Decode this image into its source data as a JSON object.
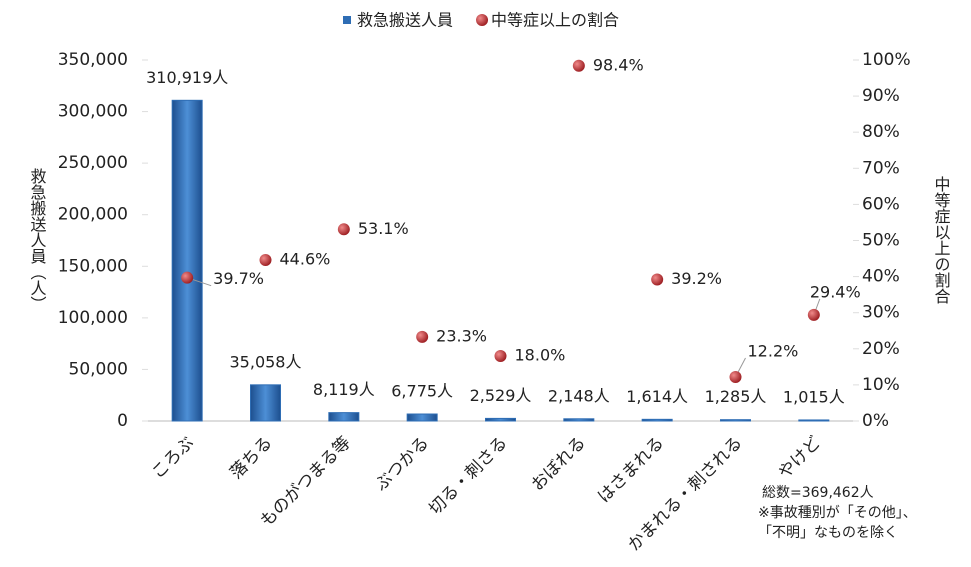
{
  "chart_data": {
    "type": "bar",
    "categories": [
      "ころぶ",
      "落ちる",
      "ものがつまる等",
      "ぶつかる",
      "切る・刺さる",
      "おぼれる",
      "はさまれる",
      "かまれる・刺される",
      "やけど"
    ],
    "series": [
      {
        "name": "救急搬送人員",
        "type": "bar",
        "axis": "y",
        "color": "#2e6db4",
        "values": [
          310919,
          35058,
          8119,
          6775,
          2529,
          2148,
          1614,
          1285,
          1015
        ],
        "value_labels": [
          "310,919人",
          "35,058人",
          "8,119人",
          "6,775人",
          "2,529人",
          "2,148人",
          "1,614人",
          "1,285人",
          "1,015人"
        ]
      },
      {
        "name": "中等症以上の割合",
        "type": "scatter",
        "axis": "y2",
        "color": "#c0282c",
        "values": [
          39.7,
          44.6,
          53.1,
          23.3,
          18.0,
          98.4,
          39.2,
          12.2,
          29.4
        ],
        "value_labels": [
          "39.7%",
          "44.6%",
          "53.1%",
          "23.3%",
          "18.0%",
          "98.4%",
          "39.2%",
          "12.2%",
          "29.4%"
        ]
      }
    ],
    "ylabel": "救急搬送人員（人）",
    "y2label": "中等症以上の割合",
    "ylim": [
      0,
      350000
    ],
    "yticks": [
      0,
      {
        "value": 50000,
        "label": "50,000"
      },
      {
        "value": 100000,
        "label": "100,000"
      },
      {
        "value": 150000,
        "label": "150,000"
      },
      {
        "value": 200000,
        "label": "200,000"
      },
      {
        "value": 250000,
        "label": "250,000"
      },
      {
        "value": 300000,
        "label": "300,000"
      },
      {
        "value": 350000,
        "label": "350,000"
      }
    ],
    "y2lim": [
      0,
      100
    ],
    "y2ticks": [
      {
        "value": 0,
        "label": "0%"
      },
      {
        "value": 10,
        "label": "10%"
      },
      {
        "value": 20,
        "label": "20%"
      },
      {
        "value": 30,
        "label": "30%"
      },
      {
        "value": 40,
        "label": "40%"
      },
      {
        "value": 50,
        "label": "50%"
      },
      {
        "value": 60,
        "label": "60%"
      },
      {
        "value": 70,
        "label": "70%"
      },
      {
        "value": 80,
        "label": "80%"
      },
      {
        "value": 90,
        "label": "90%"
      },
      {
        "value": 100,
        "label": "100%"
      }
    ],
    "legend": "top",
    "notes": [
      "総数=369,462人",
      "※事故種別が「その他」、",
      "「不明」なものを除く"
    ]
  }
}
